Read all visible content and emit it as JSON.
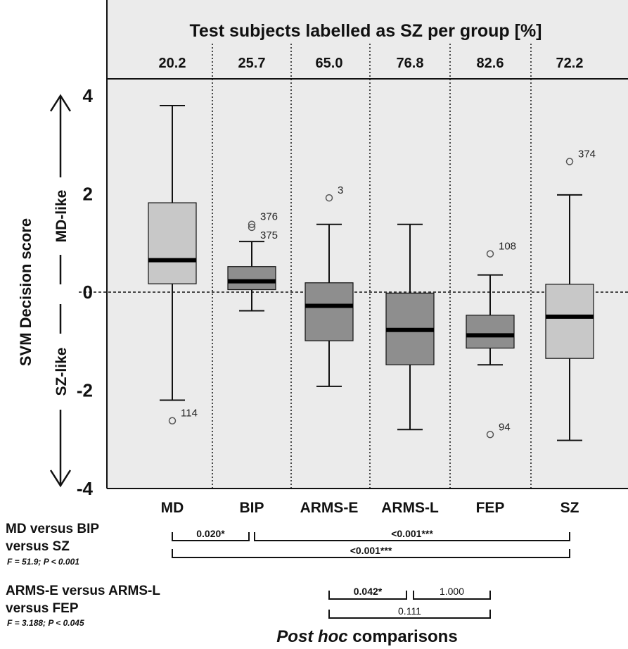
{
  "chart_data": {
    "type": "box",
    "header_title": "Test subjects labelled as SZ per group [%]",
    "header_values": [
      "20.2",
      "25.7",
      "65.0",
      "76.8",
      "82.6",
      "72.2"
    ],
    "categories": [
      "MD",
      "BIP",
      "ARMS-E",
      "ARMS-L",
      "FEP",
      "SZ"
    ],
    "ylabel": "SVM Decision score",
    "ylim": [
      -4,
      4.4
    ],
    "y_ticks": [
      "4",
      "2",
      "0",
      "-2",
      "-4"
    ],
    "y_tick_values": [
      4,
      2,
      0,
      -2,
      -4
    ],
    "reference_line": 0,
    "arrow_up_label": "MD-like",
    "arrow_down_label": "SZ-like",
    "boxes": [
      {
        "category": "MD",
        "whisker_low": -2.2,
        "q1": 0.17,
        "median": 0.65,
        "q3": 1.82,
        "whisker_high": 3.8,
        "fill": "#c8c8c8",
        "outliers": [
          {
            "value": -2.62,
            "label": "114"
          }
        ]
      },
      {
        "category": "BIP",
        "whisker_low": -0.38,
        "q1": 0.05,
        "median": 0.22,
        "q3": 0.52,
        "whisker_high": 1.03,
        "fill": "#8e8e8e",
        "outliers": [
          {
            "value": 1.38,
            "label": "376"
          },
          {
            "value": 1.32,
            "label": "375"
          }
        ]
      },
      {
        "category": "ARMS-E",
        "whisker_low": -1.92,
        "q1": -0.99,
        "median": -0.28,
        "q3": 0.19,
        "whisker_high": 1.38,
        "fill": "#8e8e8e",
        "outliers": [
          {
            "value": 1.92,
            "label": "3"
          }
        ]
      },
      {
        "category": "ARMS-L",
        "whisker_low": -2.8,
        "q1": -1.48,
        "median": -0.77,
        "q3": -0.02,
        "whisker_high": 1.38,
        "fill": "#8e8e8e",
        "outliers": []
      },
      {
        "category": "FEP",
        "whisker_low": -1.48,
        "q1": -1.14,
        "median": -0.88,
        "q3": -0.47,
        "whisker_high": 0.35,
        "fill": "#8e8e8e",
        "outliers": [
          {
            "value": 0.78,
            "label": "108"
          },
          {
            "value": -2.9,
            "label": "94"
          }
        ]
      },
      {
        "category": "SZ",
        "whisker_low": -3.02,
        "q1": -1.35,
        "median": -0.5,
        "q3": 0.16,
        "whisker_high": 1.98,
        "fill": "#c8c8c8",
        "outliers": [
          {
            "value": 2.66,
            "label": "374"
          }
        ]
      }
    ]
  },
  "comparisons": {
    "title_bold": "Post hoc",
    "title_rest": " comparisons",
    "group1": {
      "label_line1": "MD versus BIP",
      "label_line2": "versus SZ",
      "stats": "F = 51.9; P < 0.001",
      "brackets": [
        {
          "from": "MD",
          "to": "BIP",
          "label": "0.020*"
        },
        {
          "from": "BIP",
          "to": "SZ",
          "label": "<0.001***"
        },
        {
          "from": "MD",
          "to": "SZ",
          "label": "<0.001***"
        }
      ]
    },
    "group2": {
      "label_line1": "ARMS-E versus ARMS-L",
      "label_line2": "versus FEP",
      "stats": "F = 3.188; P < 0.045",
      "brackets": [
        {
          "from": "ARMS-E",
          "to": "ARMS-L",
          "label": "0.042*"
        },
        {
          "from": "ARMS-L",
          "to": "FEP",
          "label": "1.000"
        },
        {
          "from": "ARMS-E",
          "to": "FEP",
          "label": "0.111"
        }
      ]
    }
  },
  "colors": {
    "background": "#ffffff",
    "header_band": "#ebebeb",
    "plot_bg": "#ebebeb",
    "box_light": "#c8c8c8",
    "box_dark": "#8e8e8e",
    "ink": "#111111"
  }
}
